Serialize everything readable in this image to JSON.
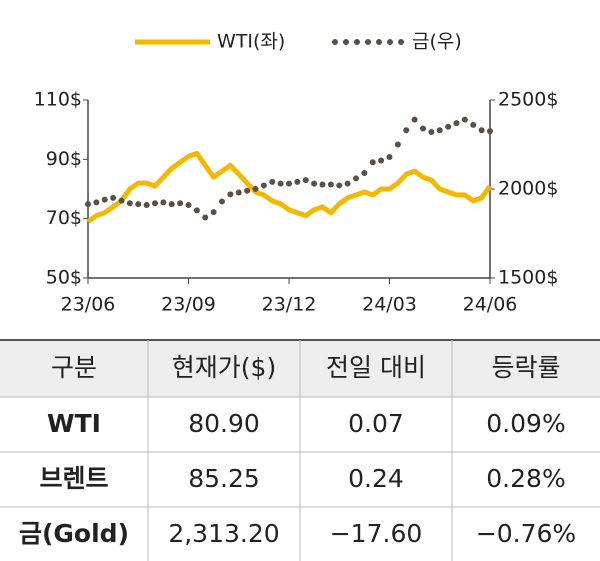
{
  "chart_data": {
    "type": "line",
    "categories": [
      "23/06",
      null,
      null,
      null,
      null,
      null,
      null,
      null,
      null,
      null,
      null,
      null,
      "23/09",
      null,
      null,
      null,
      null,
      null,
      null,
      null,
      null,
      null,
      null,
      null,
      "23/12",
      null,
      null,
      null,
      null,
      null,
      null,
      null,
      null,
      null,
      null,
      null,
      "24/03",
      null,
      null,
      null,
      null,
      null,
      null,
      null,
      null,
      null,
      null,
      null,
      "24/06"
    ],
    "series": [
      {
        "name": "WTI(좌)",
        "color": "#f5b800",
        "axis": "y",
        "values": [
          69,
          71,
          72,
          74,
          76,
          80,
          82,
          82,
          81,
          84,
          87,
          89,
          91,
          92,
          88,
          84,
          86,
          88,
          85,
          82,
          79,
          78,
          76,
          75,
          73,
          72,
          71,
          73,
          74,
          72,
          75,
          77,
          78,
          79,
          78,
          80,
          80,
          82,
          85,
          86,
          84,
          83,
          80,
          79,
          78,
          78,
          76,
          77,
          81
        ]
      },
      {
        "name": "금(우)",
        "color": "#5b5045",
        "axis": "y2",
        "values": [
          1915,
          1925,
          1940,
          1950,
          1935,
          1920,
          1915,
          1910,
          1920,
          1925,
          1915,
          1920,
          1910,
          1880,
          1840,
          1870,
          1930,
          1970,
          1980,
          1990,
          2000,
          2020,
          2040,
          2030,
          2030,
          2040,
          2050,
          2030,
          2025,
          2025,
          2020,
          2030,
          2060,
          2090,
          2150,
          2160,
          2180,
          2250,
          2330,
          2390,
          2340,
          2320,
          2330,
          2350,
          2370,
          2390,
          2360,
          2330,
          2325
        ]
      }
    ],
    "ylim": [
      50,
      110
    ],
    "yticks": [
      {
        "value": 50,
        "label": "50$"
      },
      {
        "value": 70,
        "label": "70$"
      },
      {
        "value": 90,
        "label": "90$"
      },
      {
        "value": 110,
        "label": "110$"
      }
    ],
    "y2lim": [
      1500,
      2500
    ],
    "y2ticks": [
      {
        "value": 1500,
        "label": "1500$"
      },
      {
        "value": 2000,
        "label": "2000$"
      },
      {
        "value": 2500,
        "label": "2500$"
      }
    ],
    "legend": "top"
  },
  "table": {
    "header": [
      "구분",
      "현재가($)",
      "전일 대비",
      "등락률"
    ],
    "rows": [
      [
        "WTI",
        "80.90",
        "0.07",
        "0.09%"
      ],
      [
        "브렌트",
        "85.25",
        "0.24",
        "0.28%"
      ],
      [
        "금(Gold)",
        "2,313.20",
        "−17.60",
        "−0.76%"
      ]
    ]
  }
}
